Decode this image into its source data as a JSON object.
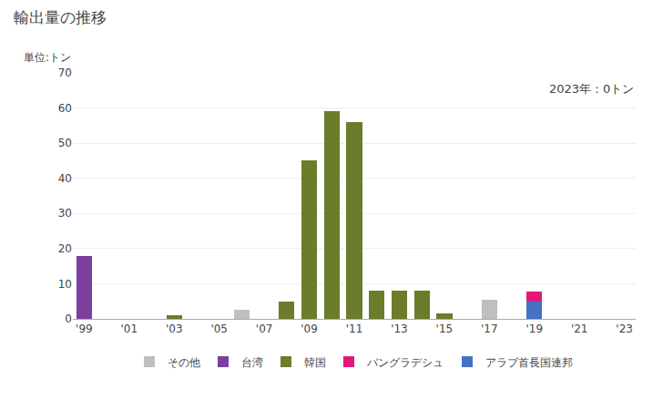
{
  "chart_data": {
    "type": "bar",
    "stacked": true,
    "title": "輸出量の推移",
    "ylabel": "単位:トン",
    "annotations": [
      "2023年：0トン"
    ],
    "categories": [
      "'99",
      null,
      "'01",
      null,
      "'03",
      null,
      "'05",
      null,
      "'07",
      null,
      "'09",
      null,
      "'11",
      null,
      "'13",
      null,
      "'15",
      null,
      "'17",
      null,
      "'19",
      null,
      "'21",
      null,
      "'23"
    ],
    "series": [
      {
        "name": "アラブ首長国連邦",
        "color": "#4472C4",
        "values": [
          0,
          0,
          0,
          0,
          0,
          0,
          0,
          0,
          0,
          0,
          0,
          0,
          0,
          0,
          0,
          0,
          0,
          0,
          0,
          0,
          5.0,
          0,
          0,
          0,
          0
        ]
      },
      {
        "name": "バングラデシュ",
        "color": "#E3187A",
        "values": [
          0,
          0,
          0,
          0,
          0,
          0,
          0,
          0,
          0,
          0,
          0,
          0,
          0,
          0,
          0,
          0,
          0,
          0,
          0,
          0,
          2.8,
          0,
          0,
          0,
          0
        ]
      },
      {
        "name": "韓国",
        "color": "#6B7C2A",
        "values": [
          0,
          0,
          0,
          0,
          1.0,
          0,
          0,
          0,
          0,
          5.0,
          45.0,
          59.0,
          56.0,
          8.0,
          8.0,
          8.0,
          1.5,
          0,
          0,
          0,
          0,
          0,
          0,
          0,
          0
        ]
      },
      {
        "name": "台湾",
        "color": "#7B3F9E",
        "values": [
          18.0,
          0,
          0,
          0,
          0,
          0,
          0,
          0,
          0,
          0,
          0,
          0,
          0,
          0,
          0,
          0,
          0,
          0,
          0,
          0,
          0,
          0,
          0,
          0,
          0
        ]
      },
      {
        "name": "その他",
        "color": "#BFBFBF",
        "values": [
          0,
          0,
          0,
          0,
          0,
          0,
          0,
          2.5,
          0,
          0,
          0,
          0,
          0,
          0,
          0,
          0,
          0,
          0,
          5.5,
          0,
          0,
          0,
          0,
          0,
          0
        ]
      }
    ],
    "ylim": [
      0,
      70
    ],
    "yticks": [
      0,
      10,
      20,
      30,
      40,
      50,
      60,
      70
    ],
    "grid": true,
    "legend": "bottom"
  }
}
